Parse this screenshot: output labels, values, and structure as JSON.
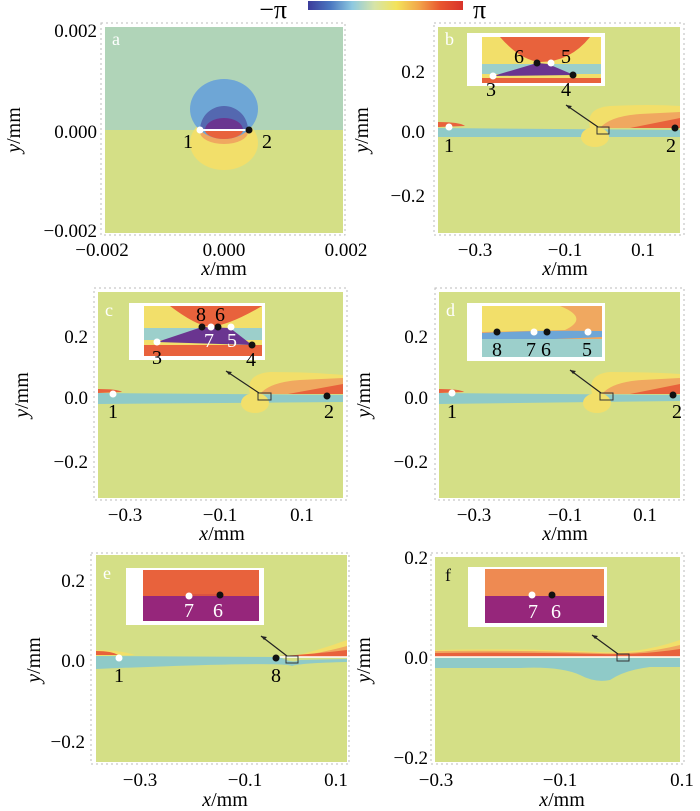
{
  "colorbar": {
    "min_label": "−π",
    "max_label": "π",
    "colors": [
      "#3b3b9a",
      "#4a76c0",
      "#8ec9e0",
      "#d6e4a8",
      "#f3e35a",
      "#f2a64a",
      "#e8552e",
      "#d8332a"
    ]
  },
  "colors": {
    "teal": "#b0d4b8",
    "olive": "#d4df86",
    "olive_b": "#d3dd84",
    "blue": "#6ea6d6",
    "navy": "#5468b0",
    "purple": "#6a3590",
    "magenta": "#96267b",
    "red": "#e8623c",
    "orange": "#f0a860",
    "yellow": "#f2df6a",
    "cyan_band": "#8fcac8",
    "inset_teal": "#9ccfcb",
    "white_point": "#ffffff",
    "black_point": "#111111"
  },
  "chart_data": [
    {
      "type": "heatmap",
      "panel": "a",
      "title": "",
      "xlabel": "x/mm",
      "ylabel": "y/mm",
      "xlim": [
        -0.002,
        0.002
      ],
      "ylim": [
        -0.002,
        0.002
      ],
      "xticks": [
        "−0.002",
        "0.000",
        "0.002"
      ],
      "yticks": [
        "0.002",
        "0.000",
        "−0.002"
      ],
      "colorbar_range": [
        "−π",
        "π"
      ],
      "points": [
        {
          "label": "1",
          "x": -0.0005,
          "y": 0.0,
          "color": "white"
        },
        {
          "label": "2",
          "x": 0.0005,
          "y": 0.0,
          "color": "black"
        }
      ],
      "inset": null
    },
    {
      "type": "heatmap",
      "panel": "b",
      "xlabel": "x/mm",
      "ylabel": "y/mm",
      "xlim": [
        -0.4,
        0.2
      ],
      "ylim": [
        -0.3,
        0.3
      ],
      "xticks": [
        "−0.3",
        "−0.1",
        "0.1"
      ],
      "yticks": [
        "0.2",
        "0.0",
        "−0.2"
      ],
      "points": [
        {
          "label": "1",
          "x": -0.37,
          "y": 0.0,
          "color": "white"
        },
        {
          "label": "2",
          "x": 0.17,
          "y": 0.0,
          "color": "black"
        }
      ],
      "inset": {
        "points": [
          {
            "label": "3",
            "color": "white"
          },
          {
            "label": "4",
            "color": "black"
          },
          {
            "label": "5",
            "color": "white"
          },
          {
            "label": "6",
            "color": "black"
          }
        ]
      }
    },
    {
      "type": "heatmap",
      "panel": "c",
      "xlabel": "x/mm",
      "ylabel": "y/mm",
      "xlim": [
        -0.4,
        0.2
      ],
      "ylim": [
        -0.3,
        0.3
      ],
      "xticks": [
        "−0.3",
        "−0.1",
        "0.1"
      ],
      "yticks": [
        "0.2",
        "0.0",
        "−0.2"
      ],
      "points": [
        {
          "label": "1",
          "x": -0.37,
          "y": 0.0,
          "color": "white"
        },
        {
          "label": "2",
          "x": 0.17,
          "y": 0.0,
          "color": "black"
        }
      ],
      "inset": {
        "points": [
          {
            "label": "3",
            "color": "white"
          },
          {
            "label": "4",
            "color": "black"
          },
          {
            "label": "5",
            "color": "white"
          },
          {
            "label": "6",
            "color": "black"
          },
          {
            "label": "7",
            "color": "white"
          },
          {
            "label": "8",
            "color": "black"
          }
        ]
      }
    },
    {
      "type": "heatmap",
      "panel": "d",
      "xlabel": "x/mm",
      "ylabel": "y/mm",
      "xlim": [
        -0.4,
        0.2
      ],
      "ylim": [
        -0.3,
        0.3
      ],
      "xticks": [
        "−0.3",
        "−0.1",
        "0.1"
      ],
      "yticks": [
        "0.2",
        "0.0",
        "−0.2"
      ],
      "points": [
        {
          "label": "1",
          "x": -0.37,
          "y": 0.0,
          "color": "white"
        },
        {
          "label": "2",
          "x": 0.17,
          "y": 0.0,
          "color": "black"
        }
      ],
      "inset": {
        "points": [
          {
            "label": "8",
            "color": "black"
          },
          {
            "label": "7",
            "color": "white"
          },
          {
            "label": "6",
            "color": "black"
          },
          {
            "label": "5",
            "color": "white"
          }
        ]
      }
    },
    {
      "type": "heatmap",
      "panel": "e",
      "xlabel": "x/mm",
      "ylabel": "y/mm",
      "xlim": [
        -0.4,
        0.1
      ],
      "ylim": [
        -0.25,
        0.25
      ],
      "xticks": [
        "−0.3",
        "−0.1",
        "0.1"
      ],
      "yticks": [
        "0.2",
        "0.0",
        "−0.2"
      ],
      "points": [
        {
          "label": "1",
          "x": -0.36,
          "y": 0.0,
          "color": "white"
        },
        {
          "label": "8",
          "x": -0.06,
          "y": 0.0,
          "color": "black"
        }
      ],
      "inset": {
        "points": [
          {
            "label": "7",
            "color": "white"
          },
          {
            "label": "6",
            "color": "black"
          }
        ]
      }
    },
    {
      "type": "heatmap",
      "panel": "f",
      "xlabel": "x/mm",
      "ylabel": "y/mm",
      "xlim": [
        -0.3,
        0.1
      ],
      "ylim": [
        -0.2,
        0.2
      ],
      "xticks": [
        "−0.3",
        "−0.1",
        "0.1"
      ],
      "yticks": [
        "0.2",
        "0.0",
        "−0.2"
      ],
      "points": [],
      "inset": {
        "points": [
          {
            "label": "7",
            "color": "white"
          },
          {
            "label": "6",
            "color": "black"
          }
        ]
      }
    }
  ],
  "labels": {
    "xlabel_italic": "x",
    "ylabel_italic": "y",
    "unit": "/mm"
  }
}
